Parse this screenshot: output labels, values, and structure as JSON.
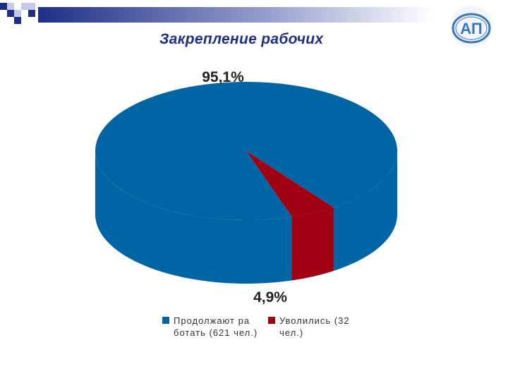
{
  "title": "Закрепление рабочих",
  "logo": {
    "text": "АП",
    "icon": "company-logo-icon"
  },
  "colors": {
    "deco_blue": "#1f2f86",
    "deco_light": "#c5cbe6"
  },
  "chart_data": {
    "type": "pie",
    "slices": [
      {
        "name": "Продолжают работать (621 чел.)",
        "value": 95.1,
        "label": "95,1%",
        "color": "#0065a4",
        "legend_text": "Продолжают ра ботать (621 чел.)"
      },
      {
        "name": "Уволились (32 чел.)",
        "value": 4.9,
        "label": "4,9%",
        "color": "#a10012",
        "legend_text": "Уволились (32 чел.)"
      }
    ],
    "legend_position": "bottom"
  }
}
